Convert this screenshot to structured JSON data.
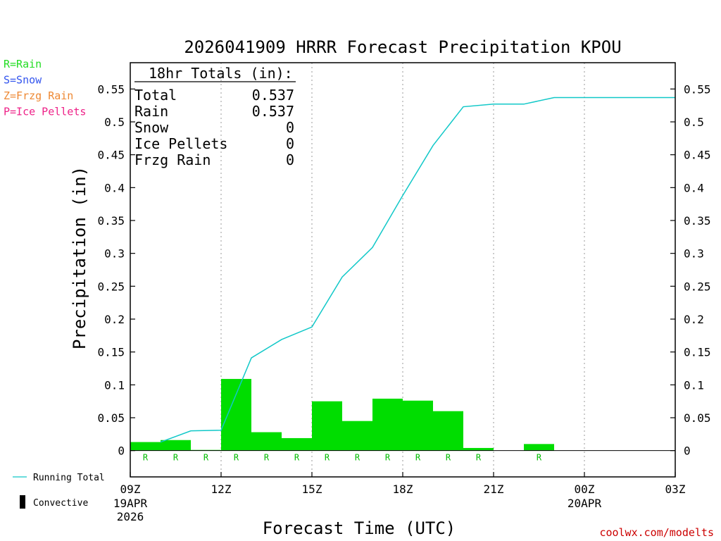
{
  "chart_data": {
    "type": "bar",
    "title": "2026041909 HRRR Forecast Precipitation KPOU",
    "ylabel": "Precipitation (in)",
    "xlabel": "Forecast Time (UTC)",
    "ylim": [
      -0.04,
      0.59
    ],
    "yticks": [
      0,
      0.05,
      0.1,
      0.15,
      0.2,
      0.25,
      0.3,
      0.35,
      0.4,
      0.45,
      0.5,
      0.55
    ],
    "ytick_labels": [
      "0",
      "0.05",
      "0.1",
      "0.15",
      "0.2",
      "0.25",
      "0.3",
      "0.35",
      "0.4",
      "0.45",
      "0.5",
      "0.55"
    ],
    "xlim_hours": [
      0,
      18
    ],
    "xticks": [
      {
        "hour": 0,
        "label": "09Z",
        "sub1": "19APR",
        "sub2": "2026"
      },
      {
        "hour": 3,
        "label": "12Z",
        "sub1": "",
        "sub2": ""
      },
      {
        "hour": 6,
        "label": "15Z",
        "sub1": "",
        "sub2": ""
      },
      {
        "hour": 9,
        "label": "18Z",
        "sub1": "",
        "sub2": ""
      },
      {
        "hour": 12,
        "label": "21Z",
        "sub1": "",
        "sub2": ""
      },
      {
        "hour": 15,
        "label": "00Z",
        "sub1": "20APR",
        "sub2": ""
      },
      {
        "hour": 18,
        "label": "03Z",
        "sub1": "",
        "sub2": ""
      }
    ],
    "hourly_precip": [
      {
        "hour": 1,
        "value": 0.013,
        "ptype": "R"
      },
      {
        "hour": 2,
        "value": 0.016,
        "ptype": "R"
      },
      {
        "hour": 3,
        "value": 0.001,
        "ptype": "R"
      },
      {
        "hour": 4,
        "value": 0.109,
        "ptype": "R"
      },
      {
        "hour": 5,
        "value": 0.028,
        "ptype": "R"
      },
      {
        "hour": 6,
        "value": 0.019,
        "ptype": "R"
      },
      {
        "hour": 7,
        "value": 0.075,
        "ptype": "R"
      },
      {
        "hour": 8,
        "value": 0.045,
        "ptype": "R"
      },
      {
        "hour": 9,
        "value": 0.079,
        "ptype": "R"
      },
      {
        "hour": 10,
        "value": 0.076,
        "ptype": "R"
      },
      {
        "hour": 11,
        "value": 0.06,
        "ptype": "R"
      },
      {
        "hour": 12,
        "value": 0.004,
        "ptype": "R"
      },
      {
        "hour": 13,
        "value": 0.0,
        "ptype": ""
      },
      {
        "hour": 14,
        "value": 0.01,
        "ptype": "R"
      },
      {
        "hour": 15,
        "value": 0.0,
        "ptype": ""
      },
      {
        "hour": 16,
        "value": 0.0,
        "ptype": ""
      },
      {
        "hour": 17,
        "value": 0.0,
        "ptype": ""
      },
      {
        "hour": 18,
        "value": 0.0,
        "ptype": ""
      }
    ],
    "running_total": [
      {
        "hour": 1,
        "value": 0.013
      },
      {
        "hour": 2,
        "value": 0.03
      },
      {
        "hour": 3,
        "value": 0.031
      },
      {
        "hour": 4,
        "value": 0.141
      },
      {
        "hour": 5,
        "value": 0.169
      },
      {
        "hour": 6,
        "value": 0.188
      },
      {
        "hour": 7,
        "value": 0.264
      },
      {
        "hour": 8,
        "value": 0.309
      },
      {
        "hour": 9,
        "value": 0.388
      },
      {
        "hour": 10,
        "value": 0.464
      },
      {
        "hour": 11,
        "value": 0.523
      },
      {
        "hour": 12,
        "value": 0.527
      },
      {
        "hour": 13,
        "value": 0.527
      },
      {
        "hour": 14,
        "value": 0.537
      },
      {
        "hour": 15,
        "value": 0.537
      },
      {
        "hour": 16,
        "value": 0.537
      },
      {
        "hour": 17,
        "value": 0.537
      },
      {
        "hour": 18,
        "value": 0.537
      }
    ],
    "totals_box": {
      "heading": "18hr Totals (in):",
      "rows": [
        {
          "label": "Total",
          "value": "0.537"
        },
        {
          "label": "Rain",
          "value": "0.537"
        },
        {
          "label": "Snow",
          "value": "0"
        },
        {
          "label": "Ice Pellets",
          "value": "0"
        },
        {
          "label": "Frzg Rain",
          "value": "0"
        }
      ]
    },
    "ptype_legend": [
      {
        "text": "R=Rain",
        "color": "#22dd22"
      },
      {
        "text": "S=Snow",
        "color": "#3355ee"
      },
      {
        "text": "Z=Frzg Rain",
        "color": "#ee8833"
      },
      {
        "text": "P=Ice Pellets",
        "color": "#ee2288"
      }
    ],
    "series_legend": [
      {
        "text": "Running Total",
        "color": "#11c8c8"
      },
      {
        "text": "Convective",
        "color": "#000000"
      }
    ],
    "bar_color": "#00dd00",
    "line_color": "#11c8c8",
    "ptype_label_color": "#00bb00",
    "credit": "coolwx.com/modelts",
    "credit_color": "#cc0000"
  }
}
